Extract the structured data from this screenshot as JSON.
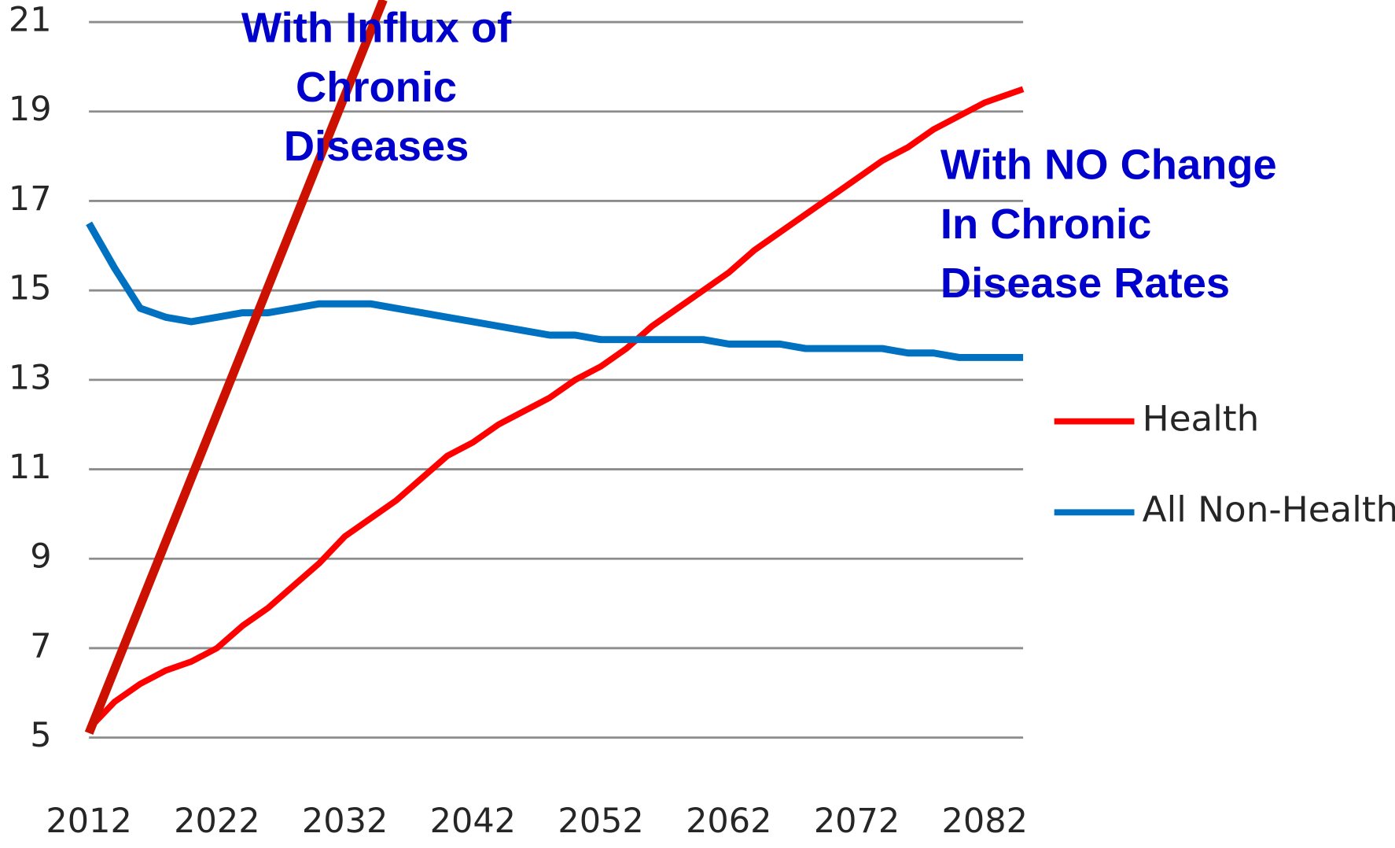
{
  "chart_data": {
    "type": "line",
    "x": [
      2012,
      2014,
      2016,
      2018,
      2020,
      2022,
      2024,
      2026,
      2028,
      2030,
      2032,
      2034,
      2036,
      2038,
      2040,
      2042,
      2044,
      2046,
      2048,
      2050,
      2052,
      2054,
      2056,
      2058,
      2060,
      2062,
      2064,
      2066,
      2068,
      2070,
      2072,
      2074,
      2076,
      2078,
      2080,
      2082,
      2085
    ],
    "series": [
      {
        "name": "Health",
        "color": "#ff0000",
        "values": [
          5.2,
          5.8,
          6.2,
          6.5,
          6.7,
          7.0,
          7.5,
          7.9,
          8.4,
          8.9,
          9.5,
          9.9,
          10.3,
          10.8,
          11.3,
          11.6,
          12.0,
          12.3,
          12.6,
          13.0,
          13.3,
          13.7,
          14.2,
          14.6,
          15.0,
          15.4,
          15.9,
          16.3,
          16.7,
          17.1,
          17.5,
          17.9,
          18.2,
          18.6,
          18.9,
          19.2,
          19.5
        ]
      },
      {
        "name": "All Non-Health",
        "color": "#0070c0",
        "values": [
          16.5,
          15.5,
          14.6,
          14.4,
          14.3,
          14.4,
          14.5,
          14.5,
          14.6,
          14.7,
          14.7,
          14.7,
          14.6,
          14.5,
          14.4,
          14.3,
          14.2,
          14.1,
          14.0,
          14.0,
          13.9,
          13.9,
          13.9,
          13.9,
          13.9,
          13.8,
          13.8,
          13.8,
          13.7,
          13.7,
          13.7,
          13.7,
          13.6,
          13.6,
          13.5,
          13.5,
          13.5
        ]
      }
    ],
    "xlim": [
      2012,
      2085
    ],
    "xticks": [
      2012,
      2022,
      2032,
      2042,
      2052,
      2062,
      2072,
      2082
    ],
    "ylim": [
      5,
      21
    ],
    "yticks": [
      5,
      7,
      9,
      11,
      13,
      15,
      17,
      19,
      21
    ],
    "grid": true,
    "legend": "right",
    "annotations": [
      {
        "lines": [
          "With Influx of",
          "Chronic",
          "Diseases"
        ],
        "color": "#0000cc",
        "line": {
          "x": [
            2012,
            2035
          ],
          "y": [
            5.1,
            21.5
          ],
          "color": "#cc1100"
        }
      },
      {
        "lines": [
          "With NO Change",
          "In Chronic",
          "Disease Rates"
        ],
        "color": "#0000cc"
      }
    ]
  }
}
